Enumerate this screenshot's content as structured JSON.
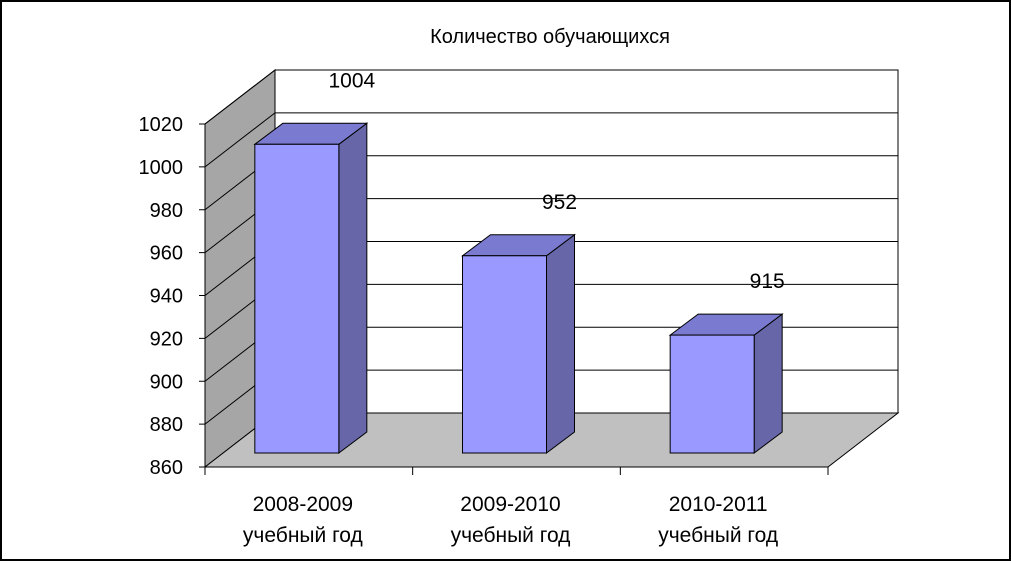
{
  "chart_data": {
    "type": "bar",
    "title": "Количество обучающихся",
    "categories": [
      [
        "2008-2009",
        "учебный год"
      ],
      [
        "2009-2010",
        "учебный год"
      ],
      [
        "2010-2011",
        "учебный год"
      ]
    ],
    "values": [
      1004,
      952,
      915
    ],
    "data_labels": [
      "1004",
      "952",
      "915"
    ],
    "ylim": [
      860,
      1020
    ],
    "yticks": [
      "860",
      "880",
      "900",
      "920",
      "940",
      "960",
      "980",
      "1000",
      "1020"
    ],
    "grid": true,
    "legend": "none",
    "style": "3d-column",
    "colors": {
      "bar_front": "#9999ff",
      "bar_side": "#6666a8",
      "bar_top": "#7a7ad0",
      "back_wall": "#ffffff",
      "side_wall": "#a6a6a6",
      "floor": "#c0c0c0",
      "frame": "#000000"
    }
  }
}
